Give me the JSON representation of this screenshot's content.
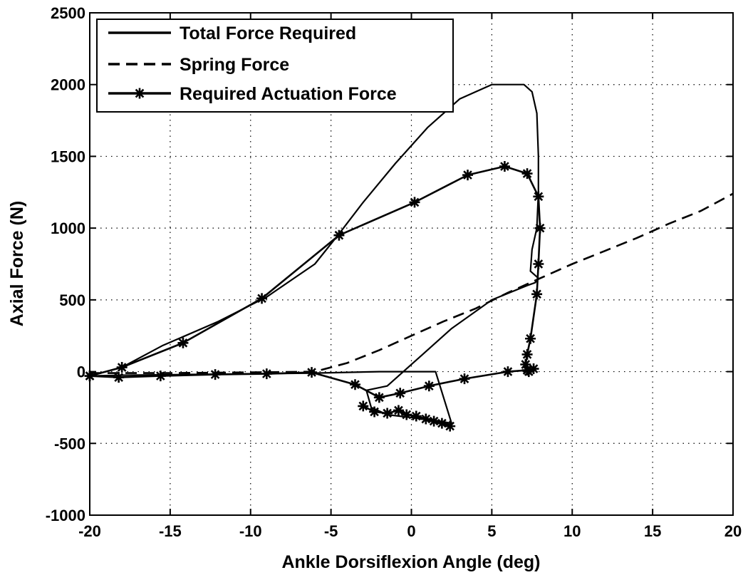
{
  "chart_data": {
    "type": "line",
    "title": "",
    "xlabel": "Ankle Dorsiflexion Angle (deg)",
    "ylabel": "Axial Force (N)",
    "xlim": [
      -20,
      20
    ],
    "ylim": [
      -1000,
      2500
    ],
    "xticks": [
      -20,
      -15,
      -10,
      -5,
      0,
      5,
      10,
      15,
      20
    ],
    "yticks": [
      -1000,
      -500,
      0,
      500,
      1000,
      1500,
      2000,
      2500
    ],
    "grid": true,
    "legend_position": "top-left",
    "series": [
      {
        "name": "Total Force Required",
        "style": "solid",
        "marker": "none",
        "x": [
          -20,
          -18,
          -15.5,
          -12,
          -9,
          -6,
          -4.5,
          -3,
          -1,
          1,
          3,
          5,
          6,
          7,
          7.5,
          7.8,
          7.9,
          7.9,
          7.8,
          7.5,
          7.4,
          7.6,
          7.9,
          7.7,
          7.2,
          5,
          2.5,
          0.5,
          -1.5,
          -2.8,
          -2.5,
          -1.5,
          0,
          1.5,
          2.5,
          1.5,
          -2,
          -6,
          -10,
          -14,
          -18,
          -20
        ],
        "y": [
          -30,
          30,
          180,
          350,
          520,
          750,
          960,
          1180,
          1450,
          1700,
          1900,
          2000,
          2000,
          2000,
          1950,
          1800,
          1500,
          1250,
          1000,
          850,
          700,
          680,
          650,
          620,
          600,
          500,
          300,
          100,
          -100,
          -130,
          -250,
          -300,
          -320,
          -340,
          -360,
          0,
          0,
          -10,
          -15,
          -20,
          -25,
          -30
        ]
      },
      {
        "name": "Spring Force",
        "style": "dashed",
        "marker": "none",
        "x": [
          -20,
          -15,
          -10,
          -6,
          -4,
          -2,
          0,
          2,
          4,
          6,
          8,
          10,
          12,
          14,
          16,
          18,
          20
        ],
        "y": [
          -10,
          -10,
          -5,
          0,
          60,
          150,
          250,
          350,
          440,
          550,
          650,
          750,
          840,
          930,
          1030,
          1120,
          1240
        ]
      },
      {
        "name": "Required Actuation Force",
        "style": "solid",
        "marker": "star",
        "x": [
          -20,
          -18,
          -14.2,
          -9.3,
          -4.5,
          0.2,
          3.5,
          5.8,
          7.2,
          7.9,
          8.0,
          7.9,
          7.8,
          7.4,
          7.2,
          7.1,
          7.3,
          7.6,
          7.2,
          6.0,
          3.3,
          1.1,
          -0.7,
          -2.0,
          -3.5,
          -6.2,
          -9.0,
          -12.2,
          -15.6,
          -18.2,
          -20
        ],
        "y": [
          -30,
          30,
          200,
          510,
          950,
          1180,
          1370,
          1430,
          1380,
          1220,
          1000,
          750,
          540,
          230,
          120,
          50,
          0,
          20,
          10,
          0,
          -50,
          -100,
          -150,
          -180,
          -90,
          -5,
          -15,
          -20,
          -30,
          -40,
          -30
        ]
      },
      {
        "name": "",
        "style": "solid",
        "marker": "star",
        "x": [
          -3.0,
          -2.3,
          -1.5,
          -0.8,
          -0.3,
          0.3,
          0.9,
          1.4,
          1.9,
          2.4
        ],
        "y": [
          -240,
          -280,
          -290,
          -270,
          -300,
          -310,
          -330,
          -345,
          -360,
          -380
        ]
      }
    ]
  }
}
